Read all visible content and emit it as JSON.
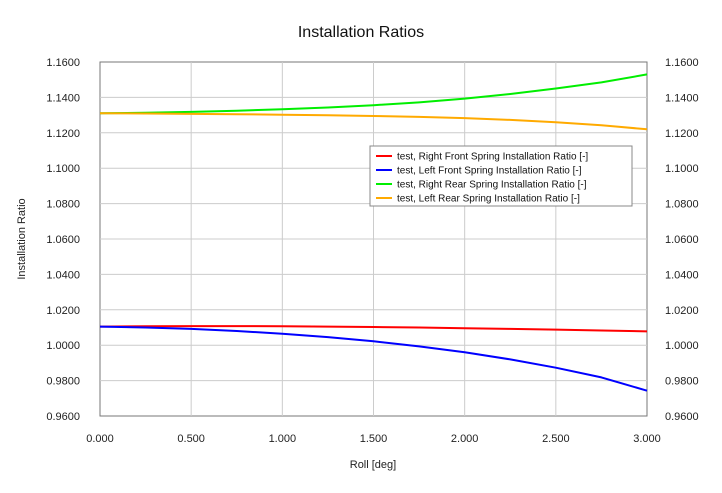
{
  "chart_data": {
    "type": "line",
    "title": "Installation Ratios",
    "xlabel": "Roll [deg]",
    "ylabel": "Installation Ratio",
    "xlim": [
      0,
      3
    ],
    "ylim": [
      0.96,
      1.16
    ],
    "x_ticks": [
      "0.000",
      "0.500",
      "1.000",
      "1.500",
      "2.000",
      "2.500",
      "3.000"
    ],
    "y_ticks": [
      "0.9600",
      "0.9800",
      "1.0000",
      "1.0200",
      "1.0400",
      "1.0600",
      "1.0800",
      "1.1000",
      "1.1200",
      "1.1400",
      "1.1600"
    ],
    "grid": true,
    "legend_position": "right",
    "x": [
      0,
      0.25,
      0.5,
      0.75,
      1.0,
      1.25,
      1.5,
      1.75,
      2.0,
      2.25,
      2.5,
      2.75,
      3.0
    ],
    "series": [
      {
        "name": "test, Right Front Spring Installation Ratio [-]",
        "color": "#ff0000",
        "values": [
          1.0105,
          1.0107,
          1.0108,
          1.0108,
          1.0107,
          1.0105,
          1.0103,
          1.01,
          1.0096,
          1.0092,
          1.0088,
          1.0083,
          1.0078
        ]
      },
      {
        "name": "test, Left Front Spring Installation Ratio [-]",
        "color": "#0000ff",
        "values": [
          1.0105,
          1.01,
          1.0092,
          1.008,
          1.0065,
          1.0046,
          1.0022,
          0.9993,
          0.996,
          0.992,
          0.9873,
          0.9818,
          0.9743
        ]
      },
      {
        "name": "test, Right Rear Spring Installation Ratio [-]",
        "color": "#00ee00",
        "values": [
          1.131,
          1.1313,
          1.1318,
          1.1325,
          1.1333,
          1.1343,
          1.1356,
          1.1372,
          1.1393,
          1.1419,
          1.145,
          1.1485,
          1.153
        ]
      },
      {
        "name": "test, Left Rear Spring Installation Ratio [-]",
        "color": "#ffaa00",
        "values": [
          1.131,
          1.1309,
          1.1307,
          1.1305,
          1.1302,
          1.1299,
          1.1295,
          1.129,
          1.1283,
          1.1273,
          1.126,
          1.1243,
          1.122
        ]
      }
    ]
  }
}
